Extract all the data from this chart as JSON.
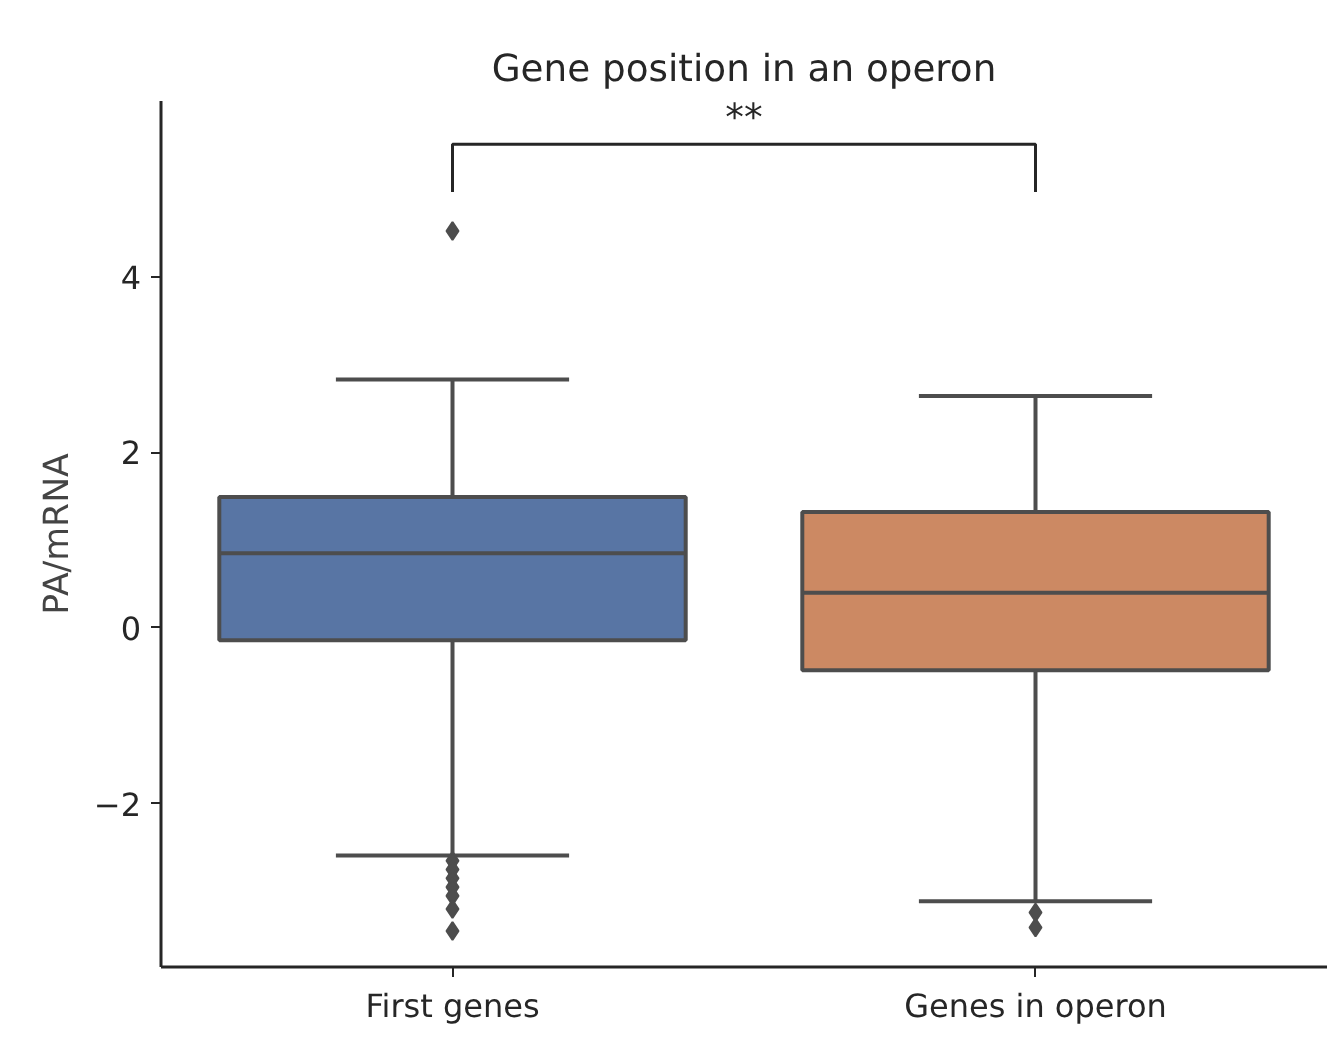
{
  "chart_data": {
    "type": "box",
    "title": "Gene position in an operon",
    "ylabel": "PA/mRNA",
    "categories": [
      "First genes",
      "Genes in operon"
    ],
    "colors": [
      "#5875a4",
      "#cc8963"
    ],
    "boxes": [
      {
        "low": -2.59,
        "q1": -0.14,
        "median": 0.85,
        "q3": 1.49,
        "high": 2.83,
        "outliers": [
          4.52,
          -2.65,
          -2.75,
          -2.85,
          -2.95,
          -3.05,
          -3.2,
          -3.45
        ]
      },
      {
        "low": -3.11,
        "q1": -0.48,
        "median": 0.4,
        "q3": 1.32,
        "high": 2.64,
        "outliers": [
          -3.24,
          -3.41
        ]
      }
    ],
    "ylim": [
      -3.86,
      6.0
    ],
    "yticks": [
      {
        "value": -2,
        "label": "−2"
      },
      0,
      2,
      4
    ],
    "marker": "diamond",
    "grid": false,
    "annotations": [
      "**"
    ]
  }
}
